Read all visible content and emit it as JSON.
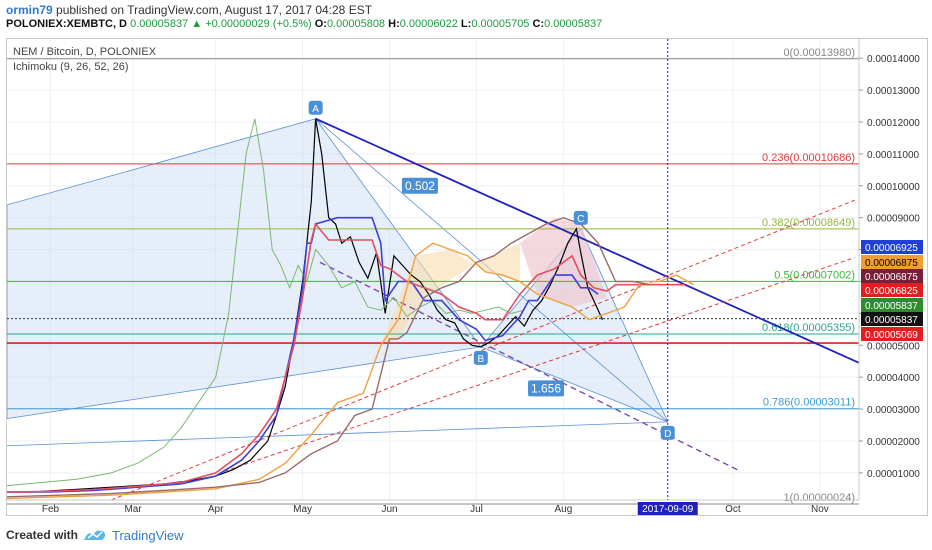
{
  "header": {
    "author": "ormin79",
    "published_text": "published on TradingView.com, August 17, 2017 04:28 EST",
    "symbol": "POLONIEX:XEMBTC, D",
    "last": "0.00005837",
    "change": "+0.00000029 (+0.5%)",
    "o_label": "O:",
    "o_value": "0.00005808",
    "h_label": "H:",
    "h_value": "0.00006022",
    "l_label": "L:",
    "l_value": "0.00005705",
    "c_label": "C:",
    "c_value": "0.00005837",
    "up_arrow": "▲"
  },
  "legend": {
    "title": "NEM / Bitcoin, D, POLONIEX",
    "indicator": "Ichimoku (9, 26, 52, 26)"
  },
  "footer": {
    "created_with": "Created with",
    "brand": "TradingView"
  },
  "chart_data": {
    "type": "line",
    "x_ticks": [
      "Feb",
      "Mar",
      "Apr",
      "May",
      "Jun",
      "Jul",
      "Aug",
      "Oct",
      "Nov"
    ],
    "x_tick_pos": [
      0.5,
      1.45,
      2.4,
      3.4,
      4.4,
      5.4,
      6.4,
      8.35,
      9.35
    ],
    "date_marker": {
      "label": "2017-09-09",
      "pos": 7.6
    },
    "y_ticks": [
      1e-05,
      2e-05,
      3e-05,
      4e-05,
      5e-05,
      6e-05,
      7e-05,
      8e-05,
      9e-05,
      0.0001,
      0.00011,
      0.00012,
      0.00013,
      0.00014
    ],
    "y_tick_labels": [
      "0.00001000",
      "0.00002000",
      "0.00003000",
      "0.00004000",
      "0.00005000",
      "0.00006000",
      "0.00007000",
      "0.00008000",
      "0.00009000",
      "0.00010000",
      "0.00011000",
      "0.00012000",
      "0.00013000",
      "0.00014000"
    ],
    "ylim": [
      1.5e-06,
      0.000146
    ],
    "xlim": [
      0,
      9.8
    ],
    "fib_levels": [
      {
        "label": "0(0.00013980)",
        "value": 0.0001398,
        "color": "#888888"
      },
      {
        "label": "0.236(0.00010686)",
        "value": 0.00010686,
        "color": "#e03a3a"
      },
      {
        "label": "0.382(0.00008649)",
        "value": 8.649e-05,
        "color": "#93b83a"
      },
      {
        "label": "0.5(0.00007002)",
        "value": 7.002e-05,
        "color": "#3ab53a"
      },
      {
        "label": "0.618(0.00005355)",
        "value": 5.355e-05,
        "color": "#2aa58a"
      },
      {
        "label": "0.786(0.00003011)",
        "value": 3.011e-05,
        "color": "#3a9cd0"
      },
      {
        "label": "1(0.00000024)",
        "value": 2.4e-07,
        "color": "#888888"
      }
    ],
    "price_labels": [
      {
        "value": 6.925e-05,
        "label": "0.00006925",
        "bg": "#1f3fd6",
        "fg": "#ffffff"
      },
      {
        "value": 6.875e-05,
        "label": "0.00006875",
        "bg": "#f39c32",
        "fg": "#000000"
      },
      {
        "value": 6.875e-05,
        "label": "0.00006875",
        "bg": "#7a1f3a",
        "fg": "#ffffff"
      },
      {
        "value": 6.825e-05,
        "label": "0.00006825",
        "bg": "#e02020",
        "fg": "#ffffff"
      },
      {
        "value": 5.837e-05,
        "label": "0.00005837",
        "bg": "#2e8b2e",
        "fg": "#ffffff"
      },
      {
        "value": 5.837e-05,
        "label": "0.00005837",
        "bg": "#111111",
        "fg": "#ffffff"
      },
      {
        "value": 5.069e-05,
        "label": "0.00005069",
        "bg": "#e02020",
        "fg": "#ffffff"
      }
    ],
    "points": [
      {
        "name": "A",
        "t": 3.55,
        "v": 0.000121
      },
      {
        "name": "B",
        "t": 5.45,
        "v": 4.95e-05
      },
      {
        "name": "C",
        "t": 6.6,
        "v": 8.65e-05
      },
      {
        "name": "D",
        "t": 7.6,
        "v": 2.6e-05
      }
    ],
    "ratios": [
      {
        "label": "0.502",
        "t": 4.75,
        "v": 0.0001
      },
      {
        "label": "1.656",
        "t": 6.2,
        "v": 3.65e-05
      }
    ],
    "series": [
      {
        "name": "",
        "color": "#000000",
        "width": 1.2,
        "t": [
          0,
          0.3,
          0.6,
          0.9,
          1.2,
          1.5,
          1.8,
          2.1,
          2.4,
          2.6,
          2.8,
          3.0,
          3.1,
          3.2,
          3.3,
          3.4,
          3.5,
          3.55,
          3.62,
          3.7,
          3.78,
          3.85,
          3.95,
          4.05,
          4.15,
          4.25,
          4.35,
          4.45,
          4.55,
          4.65,
          4.75,
          4.85,
          4.95,
          5.05,
          5.15,
          5.25,
          5.35,
          5.45,
          5.55,
          5.65,
          5.75,
          5.85,
          5.95,
          6.05,
          6.15,
          6.25,
          6.35,
          6.45,
          6.55,
          6.6,
          6.68,
          6.75,
          6.85
        ],
        "v": [
          4e-06,
          4e-06,
          4.5e-06,
          5e-06,
          5.5e-06,
          6e-06,
          6.5e-06,
          7.5e-06,
          9e-06,
          1.1e-05,
          1.4e-05,
          2e-05,
          2.8e-05,
          3.7e-05,
          5.2e-05,
          7e-05,
          9.5e-05,
          0.000121,
          0.00011,
          9e-05,
          8.8e-05,
          8.2e-05,
          8.4e-05,
          7.6e-05,
          7.1e-05,
          7.9e-05,
          6e-05,
          7.8e-05,
          7.5e-05,
          7.2e-05,
          7e-05,
          6.6e-05,
          6.1e-05,
          5.8e-05,
          5.7e-05,
          5.2e-05,
          5e-05,
          4.95e-05,
          5.1e-05,
          5.3e-05,
          5.6e-05,
          5.9e-05,
          5.6e-05,
          6.1e-05,
          6.4e-05,
          6.9e-05,
          7.5e-05,
          8.2e-05,
          8.65e-05,
          7.9e-05,
          6.8e-05,
          6.4e-05,
          5.8e-05
        ]
      },
      {
        "name": "",
        "color": "#7ab870",
        "width": 1,
        "t": [
          0,
          0.4,
          0.8,
          1.2,
          1.5,
          1.8,
          2.0,
          2.2,
          2.4,
          2.55,
          2.65,
          2.75,
          2.85,
          2.95,
          3.05,
          3.15,
          3.25,
          3.35,
          3.45,
          3.55,
          3.7,
          3.85,
          4.0,
          4.15,
          4.3,
          4.45,
          4.6,
          4.75,
          4.9,
          5.05,
          5.2,
          5.35,
          5.5,
          5.65,
          5.8,
          5.95
        ],
        "v": [
          6e-06,
          7e-06,
          8e-06,
          1e-05,
          1.3e-05,
          1.8e-05,
          2.4e-05,
          3.2e-05,
          4e-05,
          6e-05,
          8.5e-05,
          0.00011,
          0.000121,
          0.000105,
          8e-05,
          7.5e-05,
          6.8e-05,
          7.5e-05,
          7e-05,
          8e-05,
          7.5e-05,
          6.8e-05,
          7e-05,
          6.2e-05,
          6.1e-05,
          6.5e-05,
          5.9e-05,
          6.2e-05,
          6.4e-05,
          6e-05,
          6.1e-05,
          6e-05,
          6.1e-05,
          6.2e-05,
          6e-05,
          6.1e-05
        ]
      },
      {
        "name": "",
        "color": "#4040d8",
        "width": 1.6,
        "t": [
          0,
          0.5,
          1.0,
          1.5,
          2.0,
          2.4,
          2.7,
          2.9,
          3.1,
          3.2,
          3.3,
          3.4,
          3.45,
          3.5,
          3.55,
          3.8,
          4.0,
          4.2,
          4.3,
          4.35,
          4.5,
          4.65,
          4.8,
          5.0,
          5.2,
          5.4,
          5.5,
          5.7,
          5.9,
          6.0,
          6.1,
          6.3,
          6.5,
          6.6,
          6.7,
          6.8
        ],
        "v": [
          4e-06,
          4e-06,
          4.5e-06,
          5.5e-06,
          6.5e-06,
          9e-06,
          1.4e-05,
          2e-05,
          2.8e-05,
          4e-05,
          5.2e-05,
          6.8e-05,
          8.2e-05,
          8.2e-05,
          8.8e-05,
          9e-05,
          9e-05,
          9e-05,
          8.2e-05,
          6.4e-05,
          7e-05,
          7e-05,
          6.4e-05,
          6.4e-05,
          5.8e-05,
          5.5e-05,
          5.15e-05,
          5.3e-05,
          5.9e-05,
          6.4e-05,
          6.4e-05,
          7.2e-05,
          7.2e-05,
          6.8e-05,
          6.8e-05,
          6.6e-05
        ]
      },
      {
        "name": "",
        "color": "#e05060",
        "width": 1.6,
        "t": [
          0,
          0.5,
          1.0,
          1.5,
          2.0,
          2.4,
          2.7,
          2.9,
          3.1,
          3.2,
          3.3,
          3.4,
          3.5,
          3.55,
          3.7,
          3.9,
          4.2,
          4.3,
          4.4,
          4.6,
          4.8,
          5.0,
          5.2,
          5.4,
          5.5,
          5.7,
          5.9,
          6.1,
          6.3,
          6.5,
          6.6,
          6.75,
          6.9,
          7.0,
          7.2,
          7.4,
          7.6,
          7.8
        ],
        "v": [
          4e-06,
          4.2e-06,
          4.8e-06,
          5.8e-06,
          7e-06,
          1e-05,
          1.6e-05,
          2.2e-05,
          3e-05,
          4e-05,
          5e-05,
          6.5e-05,
          8.3e-05,
          8.8e-05,
          8.3e-05,
          8.3e-05,
          8.3e-05,
          7.5e-05,
          7.4e-05,
          7e-05,
          6.8e-05,
          6.6e-05,
          6.2e-05,
          6e-05,
          5.8e-05,
          5.8e-05,
          6.6e-05,
          7.2e-05,
          7.4e-05,
          7.8e-05,
          7.2e-05,
          6.8e-05,
          6.7e-05,
          6.9e-05,
          6.9e-05,
          6.9e-05,
          6.9e-05,
          6.9e-05
        ]
      },
      {
        "name": "",
        "color": "#f0a040",
        "width": 1.4,
        "t": [
          0,
          0.6,
          1.2,
          1.8,
          2.4,
          2.9,
          3.2,
          3.5,
          3.8,
          4.1,
          4.3,
          4.5,
          4.7,
          4.9,
          5.1,
          5.3,
          5.5,
          5.7,
          5.9,
          6.1,
          6.3,
          6.5,
          6.7,
          6.9,
          7.1,
          7.3,
          7.5,
          7.7,
          7.9
        ],
        "v": [
          2e-06,
          2.5e-06,
          3e-06,
          4e-06,
          5e-06,
          8e-06,
          1.3e-05,
          2.2e-05,
          3.2e-05,
          3.5e-05,
          5e-05,
          5.8e-05,
          7.8e-05,
          8.2e-05,
          8e-05,
          7.8e-05,
          7.3e-05,
          7.2e-05,
          7e-05,
          6.6e-05,
          6.4e-05,
          6.2e-05,
          5.8e-05,
          6e-05,
          6.2e-05,
          7e-05,
          7e-05,
          7.2e-05,
          6.9e-05
        ]
      },
      {
        "name": "",
        "color": "#9a6a6a",
        "width": 1.4,
        "t": [
          0,
          0.6,
          1.2,
          1.8,
          2.4,
          2.9,
          3.2,
          3.5,
          3.8,
          4.0,
          4.2,
          4.4,
          4.5,
          4.6,
          4.8,
          5.0,
          5.2,
          5.4,
          5.6,
          5.8,
          6.0,
          6.2,
          6.4,
          6.6,
          6.8,
          7.0,
          7.2,
          7.4
        ],
        "v": [
          2.5e-06,
          3e-06,
          3.5e-06,
          4.5e-06,
          5.5e-06,
          7e-06,
          1e-05,
          1.6e-05,
          2e-05,
          2.8e-05,
          3e-05,
          5.2e-05,
          5.2e-05,
          5.4e-05,
          6.5e-05,
          6.8e-05,
          7e-05,
          7.6e-05,
          7.8e-05,
          8.2e-05,
          8.5e-05,
          8.8e-05,
          9e-05,
          8.8e-05,
          8.2e-05,
          7e-05,
          7e-05,
          6.9e-05
        ]
      }
    ]
  }
}
